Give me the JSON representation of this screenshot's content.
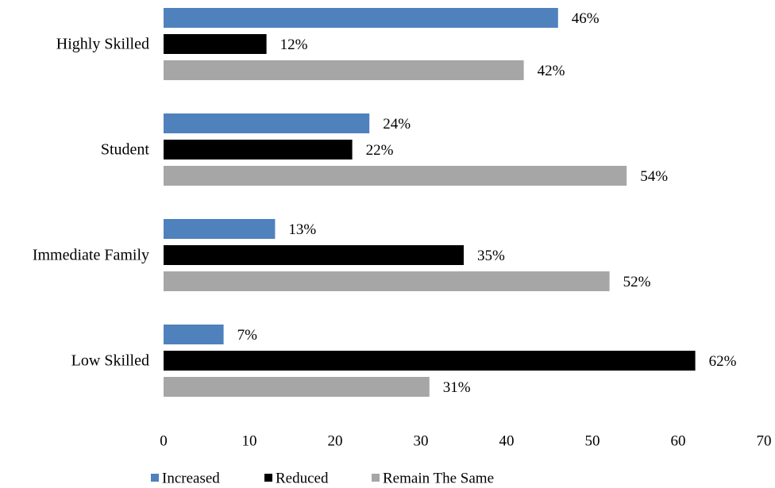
{
  "chart_data": {
    "type": "bar",
    "orientation": "horizontal",
    "categories": [
      "Highly Skilled",
      "Student",
      "Immediate Family",
      "Low Skilled"
    ],
    "series": [
      {
        "name": "Increased",
        "values": [
          46,
          24,
          13,
          7
        ],
        "labels": [
          "46%",
          "24%",
          "13%",
          "7%"
        ],
        "color": "#4f81bd"
      },
      {
        "name": "Reduced",
        "values": [
          12,
          22,
          35,
          62
        ],
        "labels": [
          "12%",
          "22%",
          "35%",
          "62%"
        ],
        "color": "#000000"
      },
      {
        "name": "Remain The Same",
        "values": [
          42,
          54,
          52,
          31
        ],
        "labels": [
          "42%",
          "54%",
          "52%",
          "31%"
        ],
        "color": "#a6a6a6"
      }
    ],
    "xlim": [
      0,
      70
    ],
    "xticks": [
      0,
      10,
      20,
      30,
      40,
      50,
      60,
      70
    ],
    "grid": false,
    "legend_position": "bottom",
    "title": "",
    "xlabel": "",
    "ylabel": ""
  }
}
